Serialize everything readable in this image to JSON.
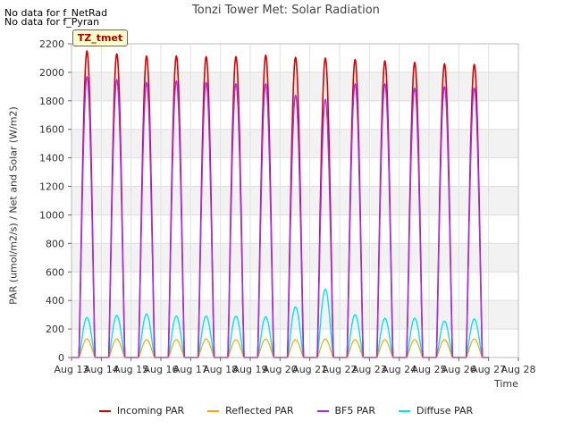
{
  "notes": [
    "No data for f_NetRad",
    "No data for f_Pyran"
  ],
  "badge": "TZ_tmet",
  "chart_data": {
    "type": "line",
    "title": "Tonzi Tower Met: Solar Radiation",
    "xlabel": "Time",
    "ylabel": "PAR (umol/m2/s) / Net and Solar (W/m2)",
    "x_ticks": [
      "Aug 13",
      "Aug 14",
      "Aug 15",
      "Aug 16",
      "Aug 17",
      "Aug 18",
      "Aug 19",
      "Aug 20",
      "Aug 21",
      "Aug 22",
      "Aug 23",
      "Aug 24",
      "Aug 25",
      "Aug 26",
      "Aug 27",
      "Aug 28"
    ],
    "xlim": [
      "Aug 13",
      "Aug 28"
    ],
    "ylim": [
      0,
      2200
    ],
    "y_ticks": [
      0,
      200,
      400,
      600,
      800,
      1000,
      1200,
      1400,
      1600,
      1800,
      2000,
      2200
    ],
    "grid": true,
    "legend_position": "bottom",
    "days": [
      "Aug 13",
      "Aug 14",
      "Aug 15",
      "Aug 16",
      "Aug 17",
      "Aug 18",
      "Aug 19",
      "Aug 20",
      "Aug 21",
      "Aug 22",
      "Aug 23",
      "Aug 24",
      "Aug 25",
      "Aug 26"
    ],
    "series": [
      {
        "name": "Incoming PAR",
        "color": "#dd0000",
        "daily_peak": [
          2150,
          2130,
          2115,
          2115,
          2110,
          2110,
          2120,
          2105,
          2100,
          2090,
          2080,
          2070,
          2060,
          2055
        ]
      },
      {
        "name": "Reflected PAR",
        "color": "#ffa500",
        "daily_peak": [
          130,
          130,
          125,
          125,
          130,
          125,
          130,
          125,
          130,
          125,
          125,
          125,
          125,
          130
        ]
      },
      {
        "name": "BF5 PAR",
        "color": "#9b30ff",
        "daily_peak": [
          1970,
          1950,
          1930,
          1940,
          1930,
          1920,
          1920,
          1840,
          1810,
          1920,
          1920,
          1890,
          1900,
          1890
        ]
      },
      {
        "name": "Diffuse PAR",
        "color": "#00e5ee",
        "daily_peak": [
          280,
          295,
          305,
          290,
          290,
          290,
          285,
          355,
          480,
          300,
          275,
          275,
          255,
          270
        ]
      }
    ]
  }
}
